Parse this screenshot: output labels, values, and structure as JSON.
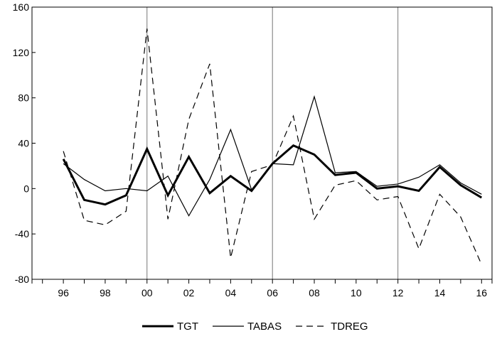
{
  "chart_data": {
    "type": "line",
    "title": "",
    "xlabel": "",
    "ylabel": "",
    "x": [
      1996,
      1997,
      1998,
      1999,
      2000,
      2001,
      2002,
      2003,
      2004,
      2005,
      2006,
      2007,
      2008,
      2009,
      2010,
      2011,
      2012,
      2013,
      2014,
      2015,
      2016
    ],
    "xlim": [
      1994.5,
      2016.5
    ],
    "ylim": [
      -80,
      160
    ],
    "y_ticks": [
      -80,
      -40,
      0,
      40,
      80,
      120,
      160
    ],
    "y_tick_labels": [
      "-80",
      "-40",
      "0",
      "40",
      "80",
      "120",
      "160"
    ],
    "x_ticks": [
      1996,
      1998,
      2000,
      2002,
      2004,
      2006,
      2008,
      2010,
      2012,
      2014,
      2016
    ],
    "x_tick_labels": [
      "96",
      "98",
      "00",
      "02",
      "04",
      "06",
      "08",
      "10",
      "12",
      "14",
      "16"
    ],
    "vertical_reference_lines": [
      2000,
      2006,
      2012
    ],
    "legend_position": "bottom-center",
    "series": [
      {
        "name": "TGT",
        "style": "thick-solid",
        "color": "#000000",
        "values": [
          26,
          -10,
          -14,
          -6,
          35,
          -6,
          28,
          -4,
          11,
          -2,
          22,
          38,
          30,
          12,
          14,
          0,
          2,
          -2,
          19,
          3,
          -8
        ]
      },
      {
        "name": "TABAS",
        "style": "thin-solid",
        "color": "#000000",
        "values": [
          22,
          8,
          -2,
          0,
          -2,
          11,
          -24,
          8,
          52,
          -1,
          22,
          21,
          81,
          14,
          15,
          2,
          4,
          10,
          21,
          5,
          -5
        ]
      },
      {
        "name": "TDREG",
        "style": "dashed",
        "color": "#000000",
        "values": [
          33,
          -28,
          -32,
          -20,
          141,
          -27,
          61,
          110,
          -61,
          15,
          21,
          64,
          -27,
          3,
          7,
          -10,
          -7,
          -53,
          -5,
          -25,
          -67
        ]
      }
    ]
  }
}
